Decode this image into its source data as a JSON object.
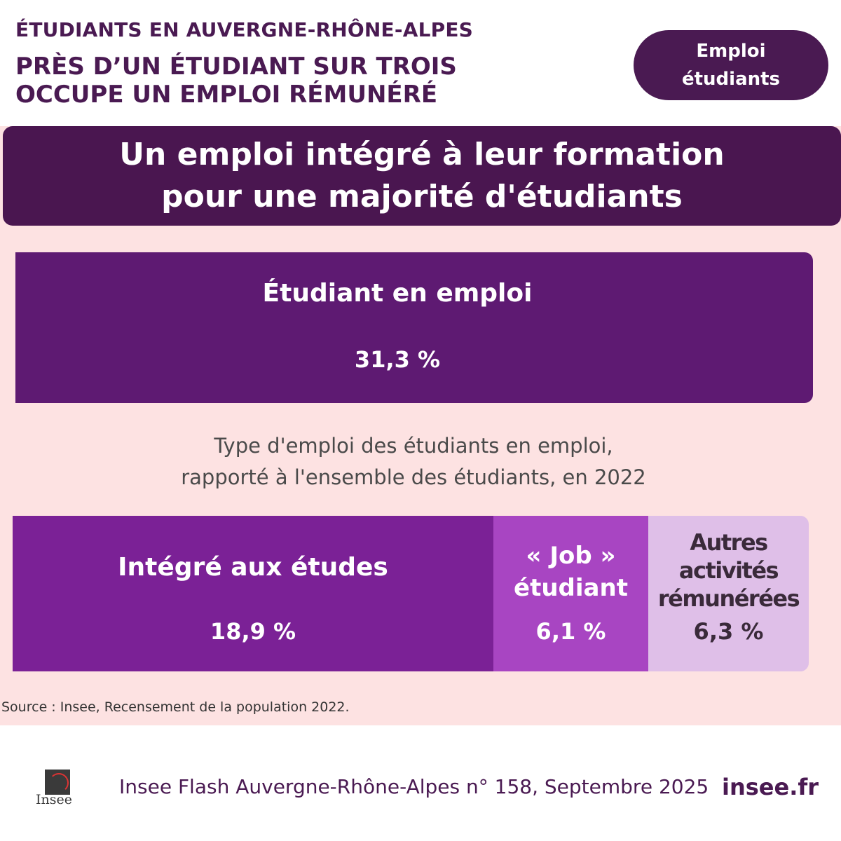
{
  "header": {
    "kicker": "ÉTUDIANTS EN AUVERGNE-RHÔNE-ALPES",
    "headline": "PRÈS D’UN ÉTUDIANT SUR TROIS\nOCCUPE UN EMPLOI RÉMUNÉRÉ",
    "tag": "Emploi\nétudiants"
  },
  "banner": {
    "text": "Un emploi intégré à leur formation\npour une majorité d'étudiants"
  },
  "chart_data": {
    "type": "bar",
    "title": "Type d'emploi des étudiants en emploi,\nrapporté à l'ensemble des étudiants, en 2022",
    "total": {
      "label": "Étudiant en emploi",
      "value": 31.3,
      "value_label": "31,3 %"
    },
    "categories": [
      "Intégré aux études",
      "« Job » étudiant",
      "Autres activités rémunérées"
    ],
    "values": [
      18.9,
      6.1,
      6.3
    ],
    "value_labels": [
      "18,9 %",
      "6,1 %",
      "6,3 %"
    ],
    "display_labels": [
      "Intégré aux études",
      "« Job »\nétudiant",
      "Autres\nactivités\nrémunérées"
    ],
    "colors": [
      "#7b2196",
      "#a845c2",
      "#dfbfe8"
    ],
    "total_color": "#5e1a72",
    "stacked": true,
    "grid": false,
    "legend": "none"
  },
  "source": "Source : Insee, Recensement de la population 2022.",
  "footer": {
    "publication": "Insee Flash Auvergne-Rhône-Alpes n° 158, Septembre 2025",
    "site": "insee.fr",
    "logo_text": "Insee"
  },
  "colors": {
    "brand": "#4a1a52",
    "panel": "#fde2e2"
  }
}
